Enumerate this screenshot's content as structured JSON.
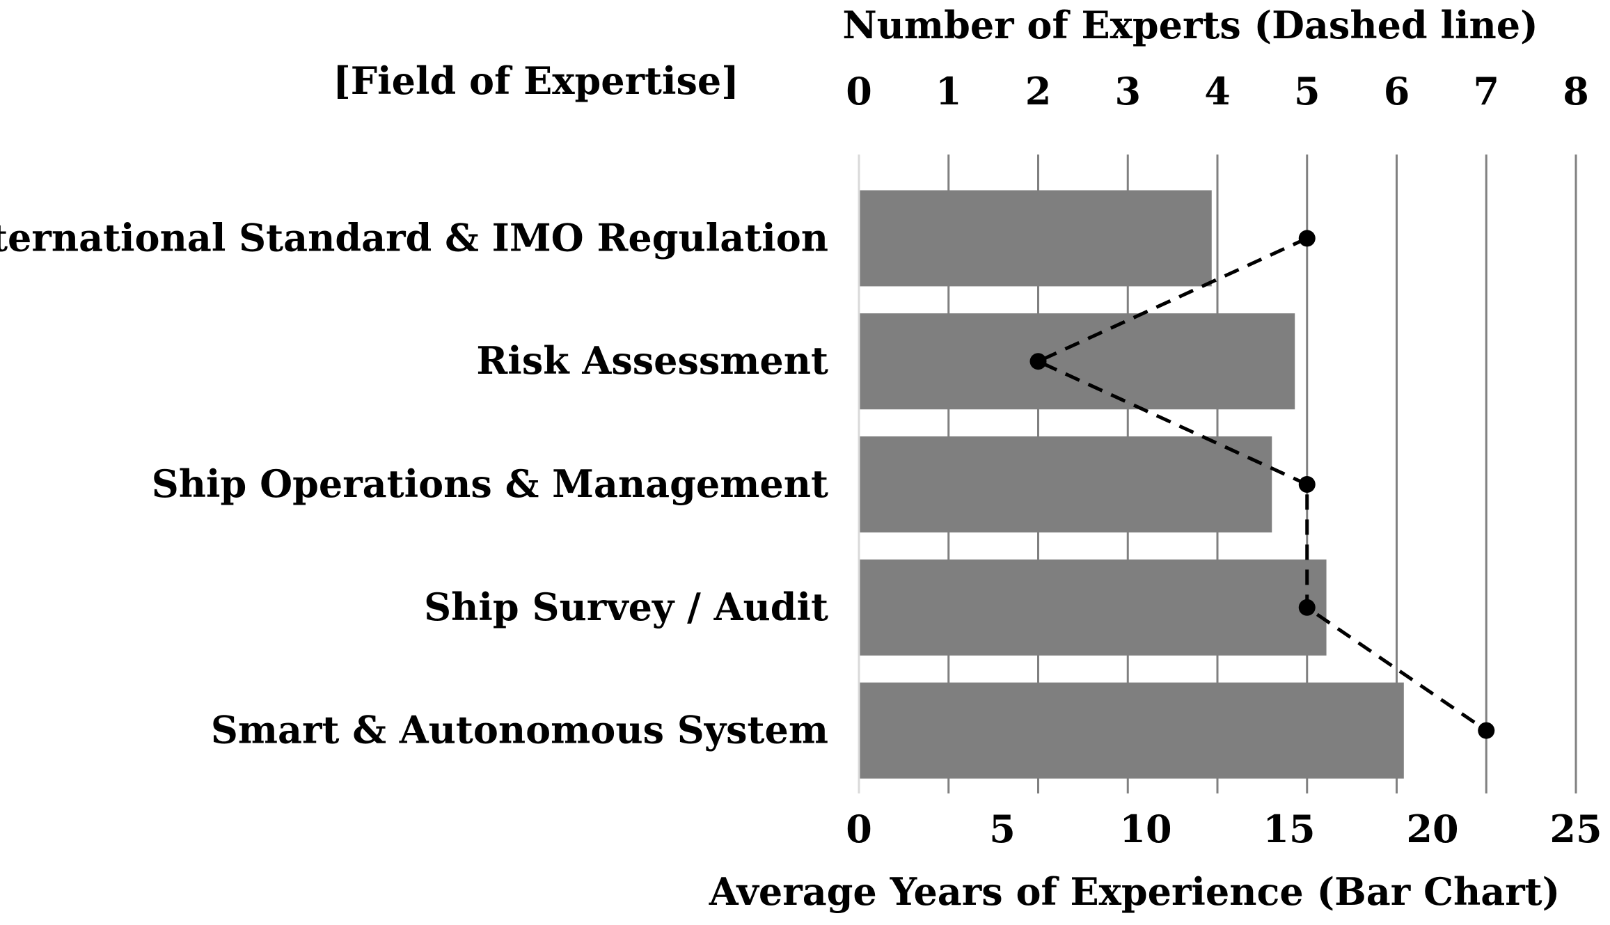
{
  "chart_data": {
    "type": "bar",
    "orientation": "horizontal",
    "field_label": "[Field of Expertise]",
    "categories": [
      "International Standard & IMO Regulation",
      "Risk Assessment",
      "Ship Operations & Management",
      "Ship Survey / Audit",
      "Smart & Autonomous System"
    ],
    "series": [
      {
        "chart_type": "bar",
        "axis": "bottom",
        "values": [
          12.3,
          15.2,
          14.4,
          16.3,
          19.0
        ],
        "color": "#7f7f7f"
      },
      {
        "chart_type": "line",
        "line_style": "dashed",
        "marker": "circle",
        "axis": "top",
        "values": [
          5,
          2,
          5,
          5,
          7
        ],
        "color": "#000000"
      }
    ],
    "x_bottom": {
      "label": "Average Years of Experience (Bar Chart)",
      "ticks": [
        "0",
        "5",
        "10",
        "15",
        "20",
        "25"
      ],
      "range": [
        0,
        25
      ]
    },
    "x_top": {
      "label": "Number of Experts (Dashed line)",
      "ticks": [
        "0",
        "1",
        "2",
        "3",
        "4",
        "5",
        "6",
        "7",
        "8"
      ],
      "range": [
        0,
        8
      ]
    },
    "grid": true,
    "legend": "none"
  }
}
